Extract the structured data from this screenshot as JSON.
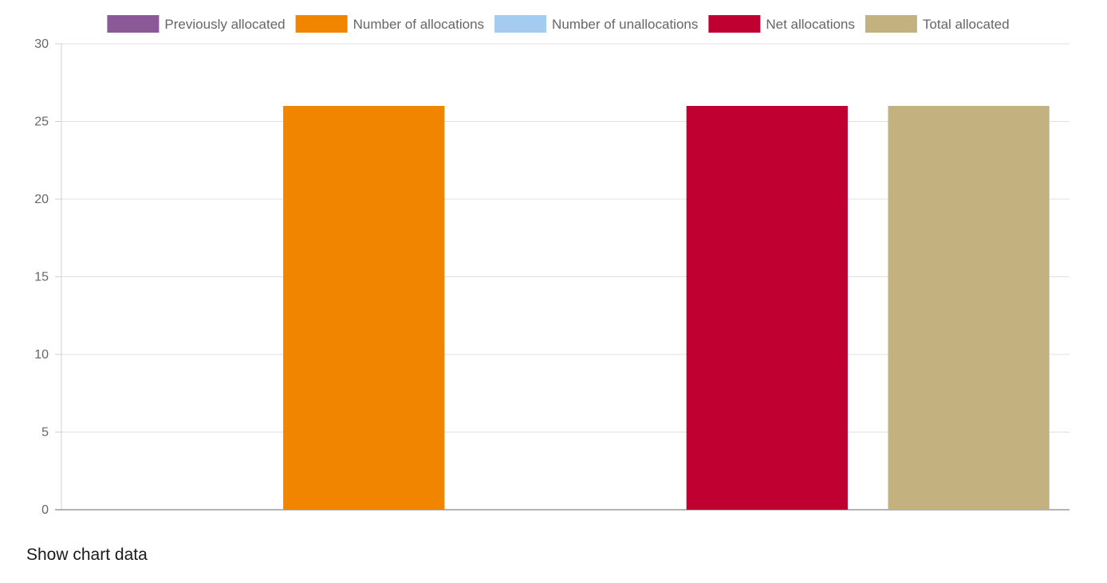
{
  "chart_data": {
    "type": "bar",
    "title": "",
    "xlabel": "",
    "ylabel": "",
    "ylim": [
      0,
      30
    ],
    "yticks": [
      0,
      5,
      10,
      15,
      20,
      25,
      30
    ],
    "grid": true,
    "legend_position": "top-center",
    "categories": [
      ""
    ],
    "series": [
      {
        "name": "Previously allocated",
        "color": "#8b5a96",
        "values": [
          0
        ]
      },
      {
        "name": "Number of allocations",
        "color": "#f28500",
        "values": [
          26
        ]
      },
      {
        "name": "Number of unallocations",
        "color": "#a6cbf0",
        "values": [
          0
        ]
      },
      {
        "name": "Net allocations",
        "color": "#c10032",
        "values": [
          26
        ]
      },
      {
        "name": "Total allocated",
        "color": "#c4b180",
        "values": [
          26
        ]
      }
    ]
  },
  "footer": {
    "show_data_label": "Show chart data"
  }
}
